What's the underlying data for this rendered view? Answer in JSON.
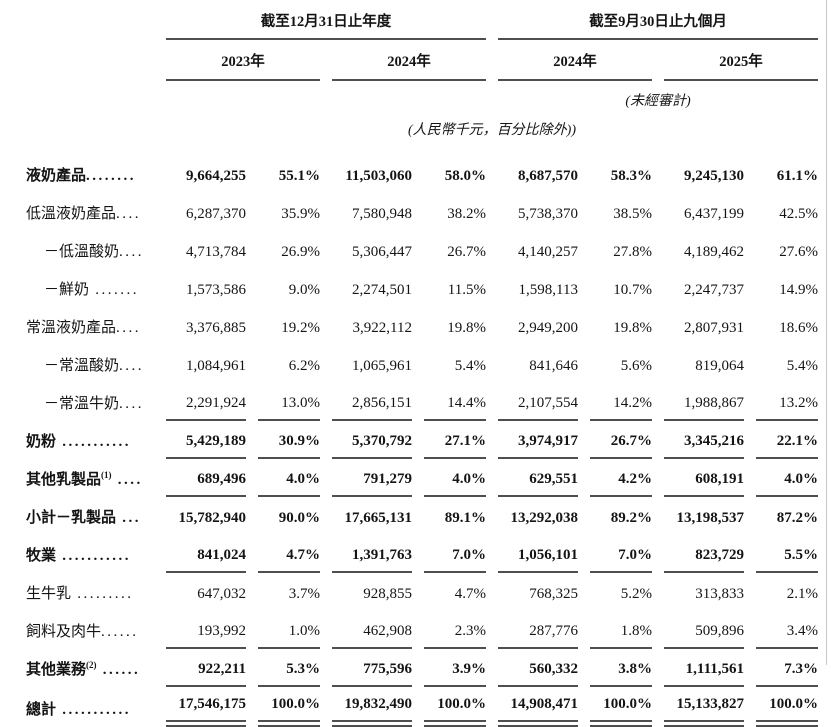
{
  "table": {
    "period_groups": [
      {
        "title": "截至12月31日止年度"
      },
      {
        "title": "截至9月30日止九個月"
      }
    ],
    "year_columns": [
      "2023年",
      "2024年",
      "2024年",
      "2025年"
    ],
    "unaudited_note": "(未經審計)",
    "units_note": "(人民幣千元，百分比除外))",
    "colors": {
      "text": "#141414",
      "rule_line": "#4f4f4f",
      "page_edge": "#c9c9c9"
    },
    "rows": [
      {
        "label": "液奶產品",
        "sup": "",
        "leader": "........",
        "bold": true,
        "indent": false,
        "underline": "none",
        "values": [
          "9,664,255",
          "55.1%",
          "11,503,060",
          "58.0%",
          "8,687,570",
          "58.3%",
          "9,245,130",
          "61.1%"
        ]
      },
      {
        "label": "低溫液奶產品",
        "sup": "",
        "leader": "....",
        "bold": false,
        "indent": false,
        "underline": "none",
        "values": [
          "6,287,370",
          "35.9%",
          "7,580,948",
          "38.2%",
          "5,738,370",
          "38.5%",
          "6,437,199",
          "42.5%"
        ]
      },
      {
        "label": "－低溫酸奶",
        "sup": "",
        "leader": "....",
        "bold": false,
        "indent": true,
        "underline": "none",
        "values": [
          "4,713,784",
          "26.9%",
          "5,306,447",
          "26.7%",
          "4,140,257",
          "27.8%",
          "4,189,462",
          "27.6%"
        ]
      },
      {
        "label": "－鮮奶",
        "sup": "",
        "leader": " .......",
        "bold": false,
        "indent": true,
        "underline": "none",
        "values": [
          "1,573,586",
          "9.0%",
          "2,274,501",
          "11.5%",
          "1,598,113",
          "10.7%",
          "2,247,737",
          "14.9%"
        ]
      },
      {
        "label": "常溫液奶產品",
        "sup": "",
        "leader": "....",
        "bold": false,
        "indent": false,
        "underline": "none",
        "values": [
          "3,376,885",
          "19.2%",
          "3,922,112",
          "19.8%",
          "2,949,200",
          "19.8%",
          "2,807,931",
          "18.6%"
        ]
      },
      {
        "label": "－常溫酸奶",
        "sup": "",
        "leader": "....",
        "bold": false,
        "indent": true,
        "underline": "none",
        "values": [
          "1,084,961",
          "6.2%",
          "1,065,961",
          "5.4%",
          "841,646",
          "5.6%",
          "819,064",
          "5.4%"
        ]
      },
      {
        "label": "－常溫牛奶",
        "sup": "",
        "leader": "....",
        "bold": false,
        "indent": true,
        "underline": "single",
        "values": [
          "2,291,924",
          "13.0%",
          "2,856,151",
          "14.4%",
          "2,107,554",
          "14.2%",
          "1,988,867",
          "13.2%"
        ]
      },
      {
        "label": "奶粉",
        "sup": "",
        "leader": " ...........",
        "bold": true,
        "indent": false,
        "underline": "single",
        "values": [
          "5,429,189",
          "30.9%",
          "5,370,792",
          "27.1%",
          "3,974,917",
          "26.7%",
          "3,345,216",
          "22.1%"
        ]
      },
      {
        "label": "其他乳製品",
        "sup": "(1)",
        "leader": " ....",
        "bold": true,
        "indent": false,
        "underline": "single",
        "values": [
          "689,496",
          "4.0%",
          "791,279",
          "4.0%",
          "629,551",
          "4.2%",
          "608,191",
          "4.0%"
        ]
      },
      {
        "label": "小計－乳製品",
        "sup": "",
        "leader": " ...",
        "bold": true,
        "indent": false,
        "underline": "none",
        "values": [
          "15,782,940",
          "90.0%",
          "17,665,131",
          "89.1%",
          "13,292,038",
          "89.2%",
          "13,198,537",
          "87.2%"
        ]
      },
      {
        "label": "牧業",
        "sup": "",
        "leader": " ...........",
        "bold": true,
        "indent": false,
        "underline": "single",
        "values": [
          "841,024",
          "4.7%",
          "1,391,763",
          "7.0%",
          "1,056,101",
          "7.0%",
          "823,729",
          "5.5%"
        ]
      },
      {
        "label": "生牛乳",
        "sup": "",
        "leader": " .........",
        "bold": false,
        "indent": false,
        "underline": "none",
        "values": [
          "647,032",
          "3.7%",
          "928,855",
          "4.7%",
          "768,325",
          "5.2%",
          "313,833",
          "2.1%"
        ]
      },
      {
        "label": "飼料及肉牛",
        "sup": "",
        "leader": "......",
        "bold": false,
        "indent": false,
        "underline": "single",
        "values": [
          "193,992",
          "1.0%",
          "462,908",
          "2.3%",
          "287,776",
          "1.8%",
          "509,896",
          "3.4%"
        ]
      },
      {
        "label": "其他業務",
        "sup": "(2)",
        "leader": " ......",
        "bold": true,
        "indent": false,
        "underline": "single",
        "values": [
          "922,211",
          "5.3%",
          "775,596",
          "3.9%",
          "560,332",
          "3.8%",
          "1,111,561",
          "7.3%"
        ]
      },
      {
        "label": "總計",
        "sup": "",
        "leader": " ...........",
        "bold": true,
        "indent": false,
        "underline": "double",
        "values": [
          "17,546,175",
          "100.0%",
          "19,832,490",
          "100.0%",
          "14,908,471",
          "100.0%",
          "15,133,827",
          "100.0%"
        ]
      }
    ]
  }
}
